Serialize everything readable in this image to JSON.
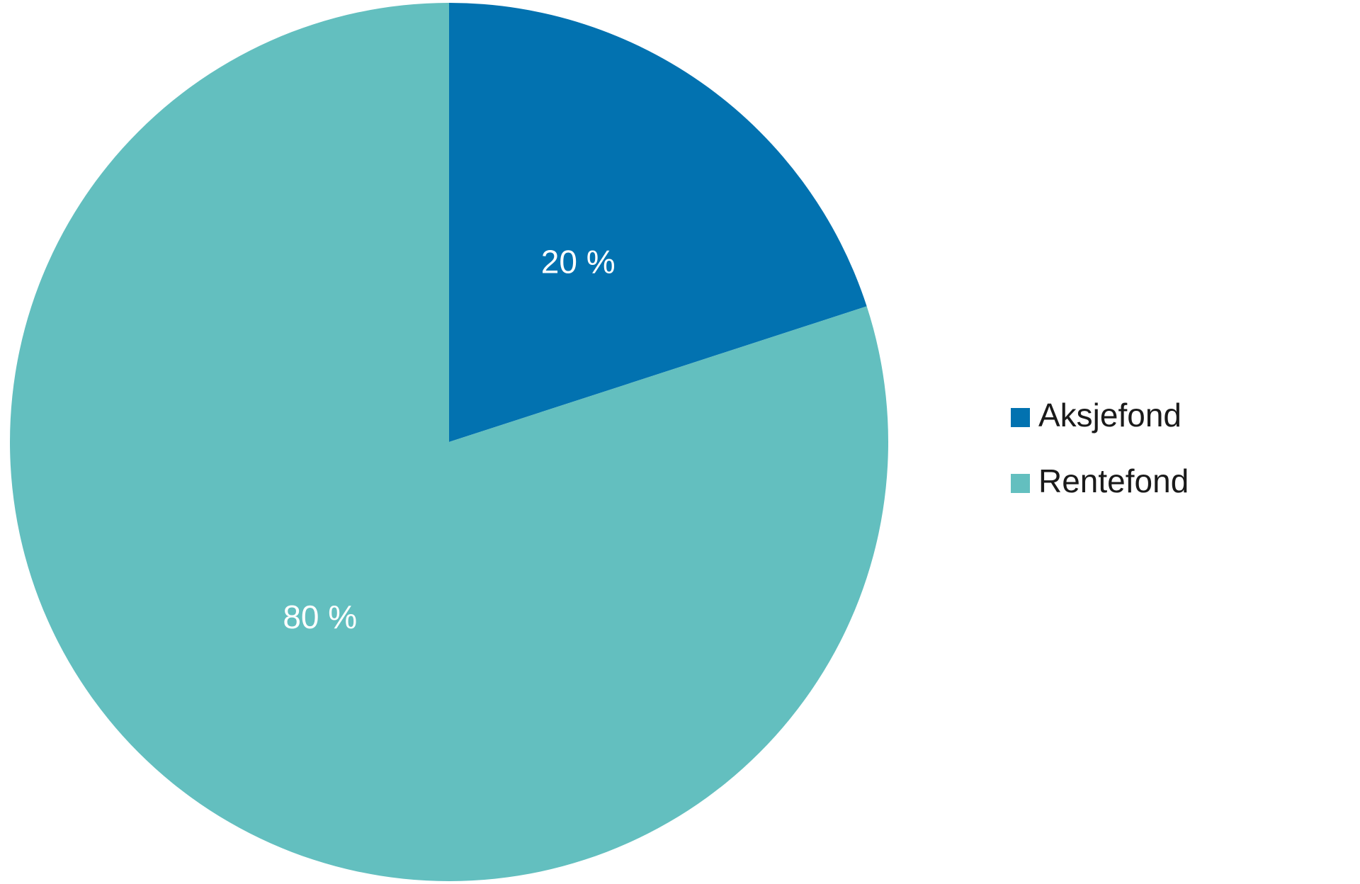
{
  "chart_data": {
    "type": "pie",
    "categories": [
      "Aksjefond",
      "Rentefond"
    ],
    "values": [
      20,
      80
    ],
    "value_labels": [
      "20 %",
      "80 %"
    ],
    "colors": [
      "#0272b0",
      "#63bfbf"
    ],
    "legend": "right"
  }
}
